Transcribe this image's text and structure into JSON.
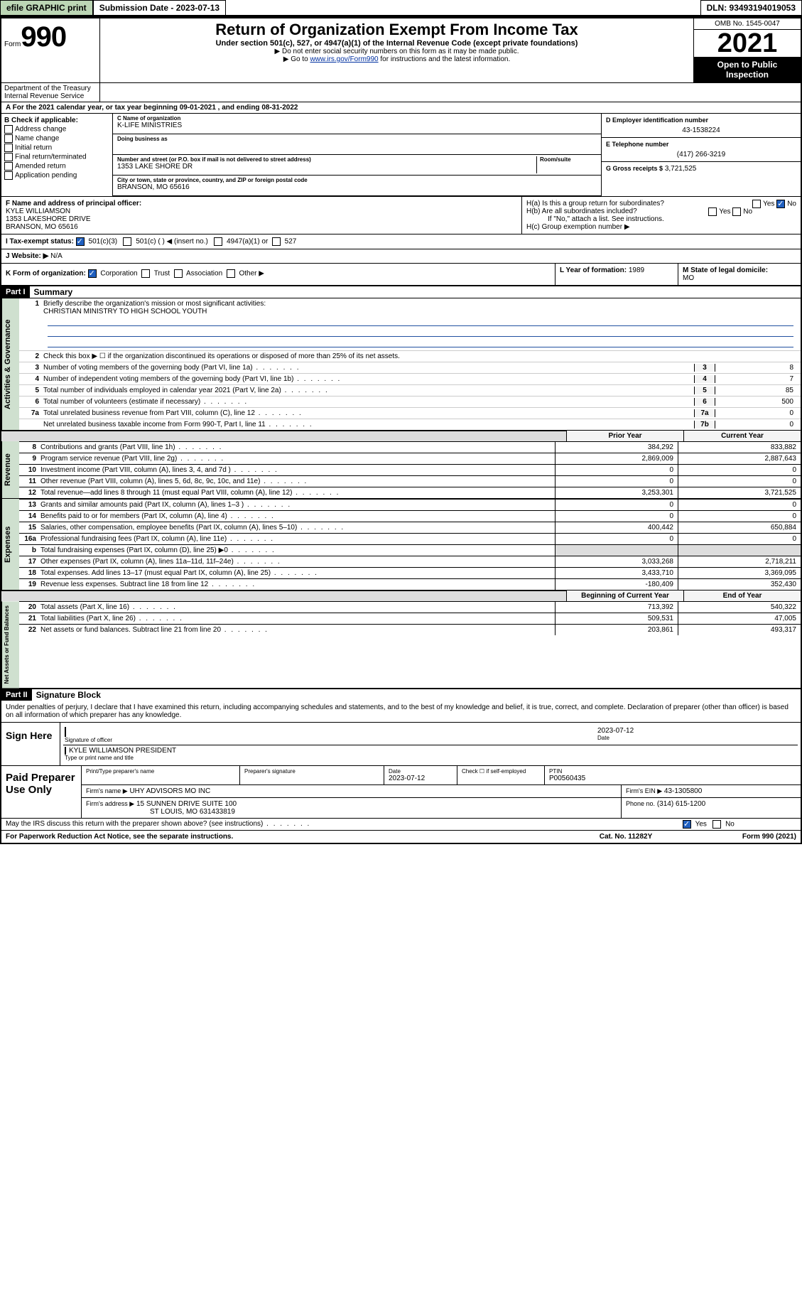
{
  "topbar": {
    "efile": "efile GRAPHIC print",
    "submission_label": "Submission Date - 2023-07-13",
    "dln": "DLN: 93493194019053"
  },
  "header": {
    "form_word": "Form",
    "form_num": "990",
    "title": "Return of Organization Exempt From Income Tax",
    "subtitle": "Under section 501(c), 527, or 4947(a)(1) of the Internal Revenue Code (except private foundations)",
    "note1": "▶ Do not enter social security numbers on this form as it may be made public.",
    "note2_pre": "▶ Go to ",
    "note2_link": "www.irs.gov/Form990",
    "note2_post": " for instructions and the latest information.",
    "omb": "OMB No. 1545-0047",
    "year": "2021",
    "open_public": "Open to Public Inspection",
    "dept": "Department of the Treasury",
    "irs": "Internal Revenue Service"
  },
  "section_a": "A For the 2021 calendar year, or tax year beginning 09-01-2021   , and ending 08-31-2022",
  "col_b": {
    "label": "B Check if applicable:",
    "address_change": "Address change",
    "name_change": "Name change",
    "initial_return": "Initial return",
    "final_return": "Final return/terminated",
    "amended": "Amended return",
    "app_pending": "Application pending"
  },
  "col_c": {
    "name_lbl": "C Name of organization",
    "name_val": "K-LIFE MINISTRIES",
    "dba_lbl": "Doing business as",
    "dba_val": "",
    "street_lbl": "Number and street (or P.O. box if mail is not delivered to street address)",
    "room_lbl": "Room/suite",
    "street_val": "1353 LAKE SHORE DR",
    "city_lbl": "City or town, state or province, country, and ZIP or foreign postal code",
    "city_val": "BRANSON, MO  65616"
  },
  "col_d": {
    "ein_lbl": "D Employer identification number",
    "ein_val": "43-1538224",
    "phone_lbl": "E Telephone number",
    "phone_val": "(417) 266-3219",
    "gross_lbl": "G Gross receipts $",
    "gross_val": "3,721,525"
  },
  "f": {
    "lbl": "F Name and address of principal officer:",
    "name": "KYLE WILLIAMSON",
    "street": "1353 LAKESHORE DRIVE",
    "city": "BRANSON, MO  65616"
  },
  "h": {
    "ha": "H(a)  Is this a group return for subordinates?",
    "hb": "H(b)  Are all subordinates included?",
    "hc": "H(c)  Group exemption number ▶",
    "yes": "Yes",
    "no": "No",
    "ifno": "If \"No,\" attach a list. See instructions."
  },
  "i": {
    "lbl": "I   Tax-exempt status:",
    "c3": "501(c)(3)",
    "c": "501(c) (   ) ◀ (insert no.)",
    "a1": "4947(a)(1) or",
    "s527": "527"
  },
  "j": {
    "lbl": "J   Website: ▶",
    "val": "N/A"
  },
  "k": {
    "lbl": "K Form of organization:",
    "corp": "Corporation",
    "trust": "Trust",
    "assoc": "Association",
    "other": "Other ▶"
  },
  "l": {
    "lbl": "L Year of formation:",
    "val": "1989"
  },
  "m": {
    "lbl": "M State of legal domicile:",
    "val": "MO"
  },
  "part1": {
    "hdr": "Part I",
    "title": "Summary",
    "line1_lbl": "Briefly describe the organization's mission or most significant activities:",
    "line1_val": "CHRISTIAN MINISTRY TO HIGH SCHOOL YOUTH",
    "line2": "Check this box ▶ ☐  if the organization discontinued its operations or disposed of more than 25% of its net assets.",
    "vlabel_ag": "Activities & Governance",
    "vlabel_rev": "Revenue",
    "vlabel_exp": "Expenses",
    "vlabel_na": "Net Assets or Fund Balances",
    "rows_ag": [
      {
        "n": "3",
        "t": "Number of voting members of the governing body (Part VI, line 1a)",
        "box": "3",
        "v": "8"
      },
      {
        "n": "4",
        "t": "Number of independent voting members of the governing body (Part VI, line 1b)",
        "box": "4",
        "v": "7"
      },
      {
        "n": "5",
        "t": "Total number of individuals employed in calendar year 2021 (Part V, line 2a)",
        "box": "5",
        "v": "85"
      },
      {
        "n": "6",
        "t": "Total number of volunteers (estimate if necessary)",
        "box": "6",
        "v": "500"
      },
      {
        "n": "7a",
        "t": "Total unrelated business revenue from Part VIII, column (C), line 12",
        "box": "7a",
        "v": "0"
      },
      {
        "n": "",
        "t": "Net unrelated business taxable income from Form 990-T, Part I, line 11",
        "box": "7b",
        "v": "0"
      }
    ],
    "prior_hdr": "Prior Year",
    "curr_hdr": "Current Year",
    "rows_rev": [
      {
        "n": "8",
        "t": "Contributions and grants (Part VIII, line 1h)",
        "p": "384,292",
        "c": "833,882"
      },
      {
        "n": "9",
        "t": "Program service revenue (Part VIII, line 2g)",
        "p": "2,869,009",
        "c": "2,887,643"
      },
      {
        "n": "10",
        "t": "Investment income (Part VIII, column (A), lines 3, 4, and 7d )",
        "p": "0",
        "c": "0"
      },
      {
        "n": "11",
        "t": "Other revenue (Part VIII, column (A), lines 5, 6d, 8c, 9c, 10c, and 11e)",
        "p": "0",
        "c": "0"
      },
      {
        "n": "12",
        "t": "Total revenue—add lines 8 through 11 (must equal Part VIII, column (A), line 12)",
        "p": "3,253,301",
        "c": "3,721,525"
      }
    ],
    "rows_exp": [
      {
        "n": "13",
        "t": "Grants and similar amounts paid (Part IX, column (A), lines 1–3 )",
        "p": "0",
        "c": "0"
      },
      {
        "n": "14",
        "t": "Benefits paid to or for members (Part IX, column (A), line 4)",
        "p": "0",
        "c": "0"
      },
      {
        "n": "15",
        "t": "Salaries, other compensation, employee benefits (Part IX, column (A), lines 5–10)",
        "p": "400,442",
        "c": "650,884"
      },
      {
        "n": "16a",
        "t": "Professional fundraising fees (Part IX, column (A), line 11e)",
        "p": "0",
        "c": "0"
      },
      {
        "n": "b",
        "t": "Total fundraising expenses (Part IX, column (D), line 25) ▶0",
        "p": "",
        "c": "",
        "grey": true
      },
      {
        "n": "17",
        "t": "Other expenses (Part IX, column (A), lines 11a–11d, 11f–24e)",
        "p": "3,033,268",
        "c": "2,718,211"
      },
      {
        "n": "18",
        "t": "Total expenses. Add lines 13–17 (must equal Part IX, column (A), line 25)",
        "p": "3,433,710",
        "c": "3,369,095"
      },
      {
        "n": "19",
        "t": "Revenue less expenses. Subtract line 18 from line 12",
        "p": "-180,409",
        "c": "352,430"
      }
    ],
    "boy_hdr": "Beginning of Current Year",
    "eoy_hdr": "End of Year",
    "rows_na": [
      {
        "n": "20",
        "t": "Total assets (Part X, line 16)",
        "p": "713,392",
        "c": "540,322"
      },
      {
        "n": "21",
        "t": "Total liabilities (Part X, line 26)",
        "p": "509,531",
        "c": "47,005"
      },
      {
        "n": "22",
        "t": "Net assets or fund balances. Subtract line 21 from line 20",
        "p": "203,861",
        "c": "493,317"
      }
    ]
  },
  "part2": {
    "hdr": "Part II",
    "title": "Signature Block",
    "declare": "Under penalties of perjury, I declare that I have examined this return, including accompanying schedules and statements, and to the best of my knowledge and belief, it is true, correct, and complete. Declaration of preparer (other than officer) is based on all information of which preparer has any knowledge.",
    "sign_here": "Sign Here",
    "sig_officer_lbl": "Signature of officer",
    "sig_date": "2023-07-12",
    "date_lbl": "Date",
    "name_title_lbl": "Type or print name and title",
    "name_title_val": "KYLE WILLIAMSON  PRESIDENT",
    "paid_lbl": "Paid Preparer Use Only",
    "prep_name_lbl": "Print/Type preparer's name",
    "prep_sig_lbl": "Preparer's signature",
    "prep_date_lbl": "Date",
    "prep_date_val": "2023-07-12",
    "check_self": "Check ☐ if self-employed",
    "ptin_lbl": "PTIN",
    "ptin_val": "P00560435",
    "firm_name_lbl": "Firm's name    ▶",
    "firm_name_val": "UHY ADVISORS MO INC",
    "firm_ein_lbl": "Firm's EIN ▶",
    "firm_ein_val": "43-1305800",
    "firm_addr_lbl": "Firm's address ▶",
    "firm_addr_val1": "15 SUNNEN DRIVE SUITE 100",
    "firm_addr_val2": "ST LOUIS, MO  631433819",
    "firm_phone_lbl": "Phone no.",
    "firm_phone_val": "(314) 615-1200"
  },
  "footer": {
    "discuss": "May the IRS discuss this return with the preparer shown above? (see instructions)",
    "yes": "Yes",
    "no": "No",
    "paperwork": "For Paperwork Reduction Act Notice, see the separate instructions.",
    "cat": "Cat. No. 11282Y",
    "form": "Form 990 (2021)"
  }
}
